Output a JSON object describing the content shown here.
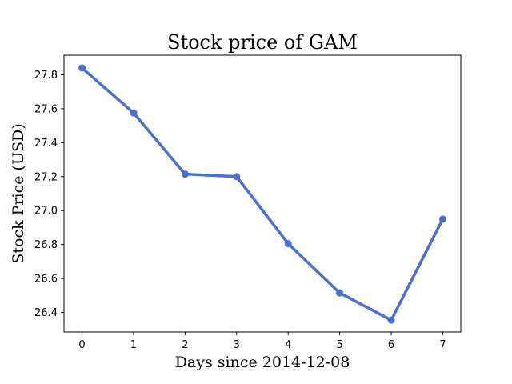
{
  "chart_data": {
    "type": "line",
    "title": "Stock price of GAM",
    "xlabel": "Days since 2014-12-08",
    "ylabel": "Stock Price (USD)",
    "x": [
      0,
      1,
      2,
      3,
      4,
      5,
      6,
      7
    ],
    "series": [
      {
        "values": [
          27.84,
          27.575,
          27.215,
          27.2,
          26.805,
          26.515,
          26.355,
          26.95
        ]
      }
    ],
    "xlim": [
      -0.35,
      7.35
    ],
    "ylim": [
      26.285,
      27.915
    ],
    "xticks": [
      "0",
      "1",
      "2",
      "3",
      "4",
      "5",
      "6",
      "7"
    ],
    "yticks": [
      "26.4",
      "26.6",
      "26.8",
      "27.0",
      "27.2",
      "27.4",
      "27.6",
      "27.8"
    ],
    "grid": false,
    "colors": {
      "line": "#4a6fd1",
      "marker": "#4a6fd1"
    }
  }
}
